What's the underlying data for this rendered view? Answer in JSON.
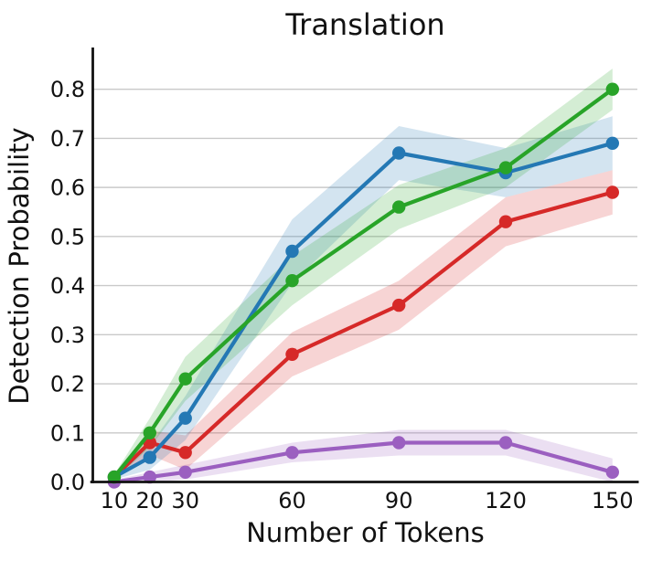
{
  "chart_data": {
    "type": "line",
    "title": "Translation",
    "xlabel": "Number of Tokens",
    "ylabel": "Detection Probability",
    "x": [
      10,
      20,
      30,
      60,
      90,
      120,
      150
    ],
    "xticks": [
      10,
      20,
      30,
      60,
      90,
      120,
      150
    ],
    "yticks": [
      0.0,
      0.1,
      0.2,
      0.3,
      0.4,
      0.5,
      0.6,
      0.7,
      0.8
    ],
    "xlim": [
      4,
      157
    ],
    "ylim": [
      0,
      0.885
    ],
    "grid": "horizontal-only",
    "legend": "none",
    "grid_color": "#c9c9c9",
    "axis_color": "#111111",
    "band_opacity": 0.2,
    "series": [
      {
        "name": "purple",
        "color": "#9b5fc0",
        "values": [
          0.0,
          0.01,
          0.02,
          0.06,
          0.08,
          0.08,
          0.02
        ],
        "band_halfwidth": [
          0.004,
          0.01,
          0.015,
          0.02,
          0.026,
          0.026,
          0.028
        ]
      },
      {
        "name": "red",
        "color": "#d62928",
        "values": [
          0.01,
          0.08,
          0.06,
          0.26,
          0.36,
          0.53,
          0.59
        ],
        "band_halfwidth": [
          0.005,
          0.025,
          0.035,
          0.045,
          0.05,
          0.05,
          0.045
        ]
      },
      {
        "name": "blue",
        "color": "#2478b4",
        "values": [
          0.01,
          0.05,
          0.13,
          0.47,
          0.67,
          0.63,
          0.69
        ],
        "band_halfwidth": [
          0.005,
          0.025,
          0.045,
          0.065,
          0.055,
          0.05,
          0.055
        ]
      },
      {
        "name": "green",
        "color": "#28a428",
        "values": [
          0.01,
          0.1,
          0.21,
          0.41,
          0.56,
          0.64,
          0.8
        ],
        "band_halfwidth": [
          0.005,
          0.03,
          0.045,
          0.05,
          0.045,
          0.04,
          0.042
        ]
      }
    ]
  }
}
